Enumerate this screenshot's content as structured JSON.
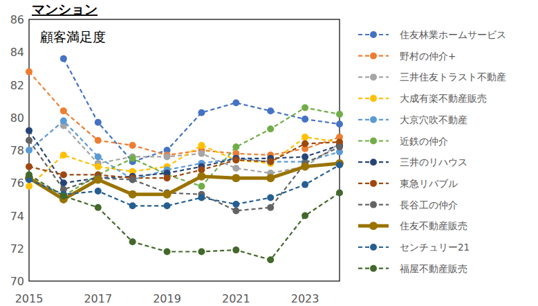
{
  "chart_data": {
    "type": "line",
    "title": "マンション",
    "annotations": [
      "顧客満足度"
    ],
    "x": [
      2015,
      2016,
      2017,
      2018,
      2019,
      2020,
      2021,
      2022,
      2023,
      2024
    ],
    "xlim": [
      2015,
      2024
    ],
    "xticks": [
      2015,
      2017,
      2019,
      2021,
      2023
    ],
    "ylim": [
      70,
      86
    ],
    "yticks": [
      70,
      72,
      74,
      76,
      78,
      80,
      82,
      84,
      86
    ],
    "grid": false,
    "legend": "right",
    "series": [
      {
        "name": "住友林業ホームサービス",
        "color": "#4472c4",
        "marker": "circle",
        "line_style": "dashed",
        "values": [
          null,
          83.6,
          79.7,
          77.3,
          78.0,
          80.3,
          80.9,
          80.4,
          79.9,
          79.6
        ]
      },
      {
        "name": "野村の仲介+",
        "color": "#ed7d31",
        "marker": "circle",
        "line_style": "dashed",
        "values": [
          82.8,
          80.4,
          78.6,
          78.3,
          77.7,
          78.0,
          77.8,
          77.7,
          78.1,
          78.8
        ]
      },
      {
        "name": "三井住友トラスト不動産",
        "color": "#a5a5a5",
        "marker": "circle",
        "line_style": "dashed",
        "values": [
          null,
          79.5,
          77.2,
          77.6,
          77.6,
          77.8,
          76.9,
          76.6,
          77.0,
          78.4
        ]
      },
      {
        "name": "大成有楽不動産販売",
        "color": "#ffc000",
        "marker": "circle",
        "line_style": "dashed",
        "values": [
          75.8,
          77.7,
          77.0,
          76.7,
          77.0,
          78.3,
          77.4,
          77.2,
          78.8,
          78.5
        ]
      },
      {
        "name": "大京穴吹不動産",
        "color": "#5b9bd5",
        "marker": "circle",
        "line_style": "dashed",
        "values": [
          78.0,
          79.8,
          77.6,
          76.2,
          76.8,
          77.2,
          77.5,
          77.3,
          77.3,
          77.9
        ]
      },
      {
        "name": "近鉄の仲介",
        "color": "#70ad47",
        "marker": "circle",
        "line_style": "dashed",
        "values": [
          null,
          75.2,
          76.5,
          77.5,
          76.5,
          75.8,
          78.2,
          79.3,
          80.6,
          80.2
        ]
      },
      {
        "name": "三井のリハウス",
        "color": "#264478",
        "marker": "circle",
        "line_style": "dashed",
        "values": [
          79.2,
          76.0,
          76.3,
          76.4,
          76.6,
          77.0,
          77.5,
          77.5,
          77.6,
          78.3
        ]
      },
      {
        "name": "東急リバブル",
        "color": "#9e480e",
        "marker": "circle",
        "line_style": "dashed",
        "values": [
          77.0,
          76.5,
          76.5,
          76.3,
          76.3,
          76.8,
          77.4,
          77.3,
          78.4,
          78.5
        ]
      },
      {
        "name": "長谷工の仲介",
        "color": "#636363",
        "marker": "circle",
        "line_style": "dashed",
        "values": [
          78.6,
          75.6,
          76.3,
          76.2,
          75.4,
          75.3,
          74.3,
          74.5,
          77.2,
          78.2
        ]
      },
      {
        "name": "住友不動産販売",
        "color": "#997300",
        "marker": "circle",
        "line_style": "solid",
        "values": [
          76.3,
          75.0,
          76.2,
          75.3,
          75.3,
          76.4,
          76.3,
          76.3,
          77.0,
          77.2
        ]
      },
      {
        "name": "センチュリー21",
        "color": "#255e91",
        "marker": "circle",
        "line_style": "dashed",
        "values": [
          76.2,
          75.3,
          75.5,
          74.6,
          74.6,
          75.1,
          74.7,
          75.1,
          75.9,
          77.1
        ]
      },
      {
        "name": "福屋不動産販売",
        "color": "#43682b",
        "marker": "circle",
        "line_style": "dashed",
        "values": [
          76.5,
          75.2,
          74.5,
          72.4,
          71.8,
          71.8,
          71.9,
          71.3,
          74.0,
          75.4
        ]
      }
    ]
  }
}
